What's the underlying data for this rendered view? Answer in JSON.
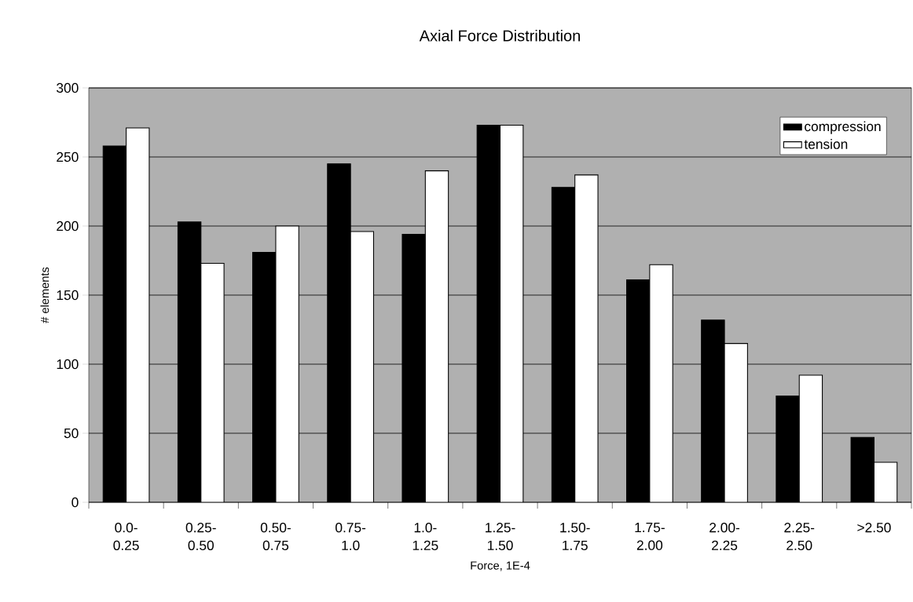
{
  "chart_data": {
    "type": "bar",
    "title": "Axial Force Distribution",
    "xlabel": "Force, 1E-4",
    "ylabel": "# elements",
    "categories": [
      "0.0- 0.25",
      "0.25- 0.50",
      "0.50- 0.75",
      "0.75- 1.0",
      "1.0- 1.25",
      "1.25- 1.50",
      "1.50- 1.75",
      "1.75- 2.00",
      "2.00- 2.25",
      "2.25- 2.50",
      ">2.50"
    ],
    "series": [
      {
        "name": "compression",
        "color": "#000000",
        "values": [
          258,
          203,
          181,
          245,
          194,
          273,
          228,
          161,
          132,
          77,
          47
        ]
      },
      {
        "name": "tension",
        "color": "#ffffff",
        "values": [
          271,
          173,
          200,
          196,
          240,
          273,
          237,
          172,
          115,
          92,
          29
        ]
      }
    ],
    "ylim": [
      0,
      300
    ],
    "yticks": [
      0,
      50,
      100,
      150,
      200,
      250,
      300
    ],
    "grid": "y",
    "legend": "top right"
  }
}
